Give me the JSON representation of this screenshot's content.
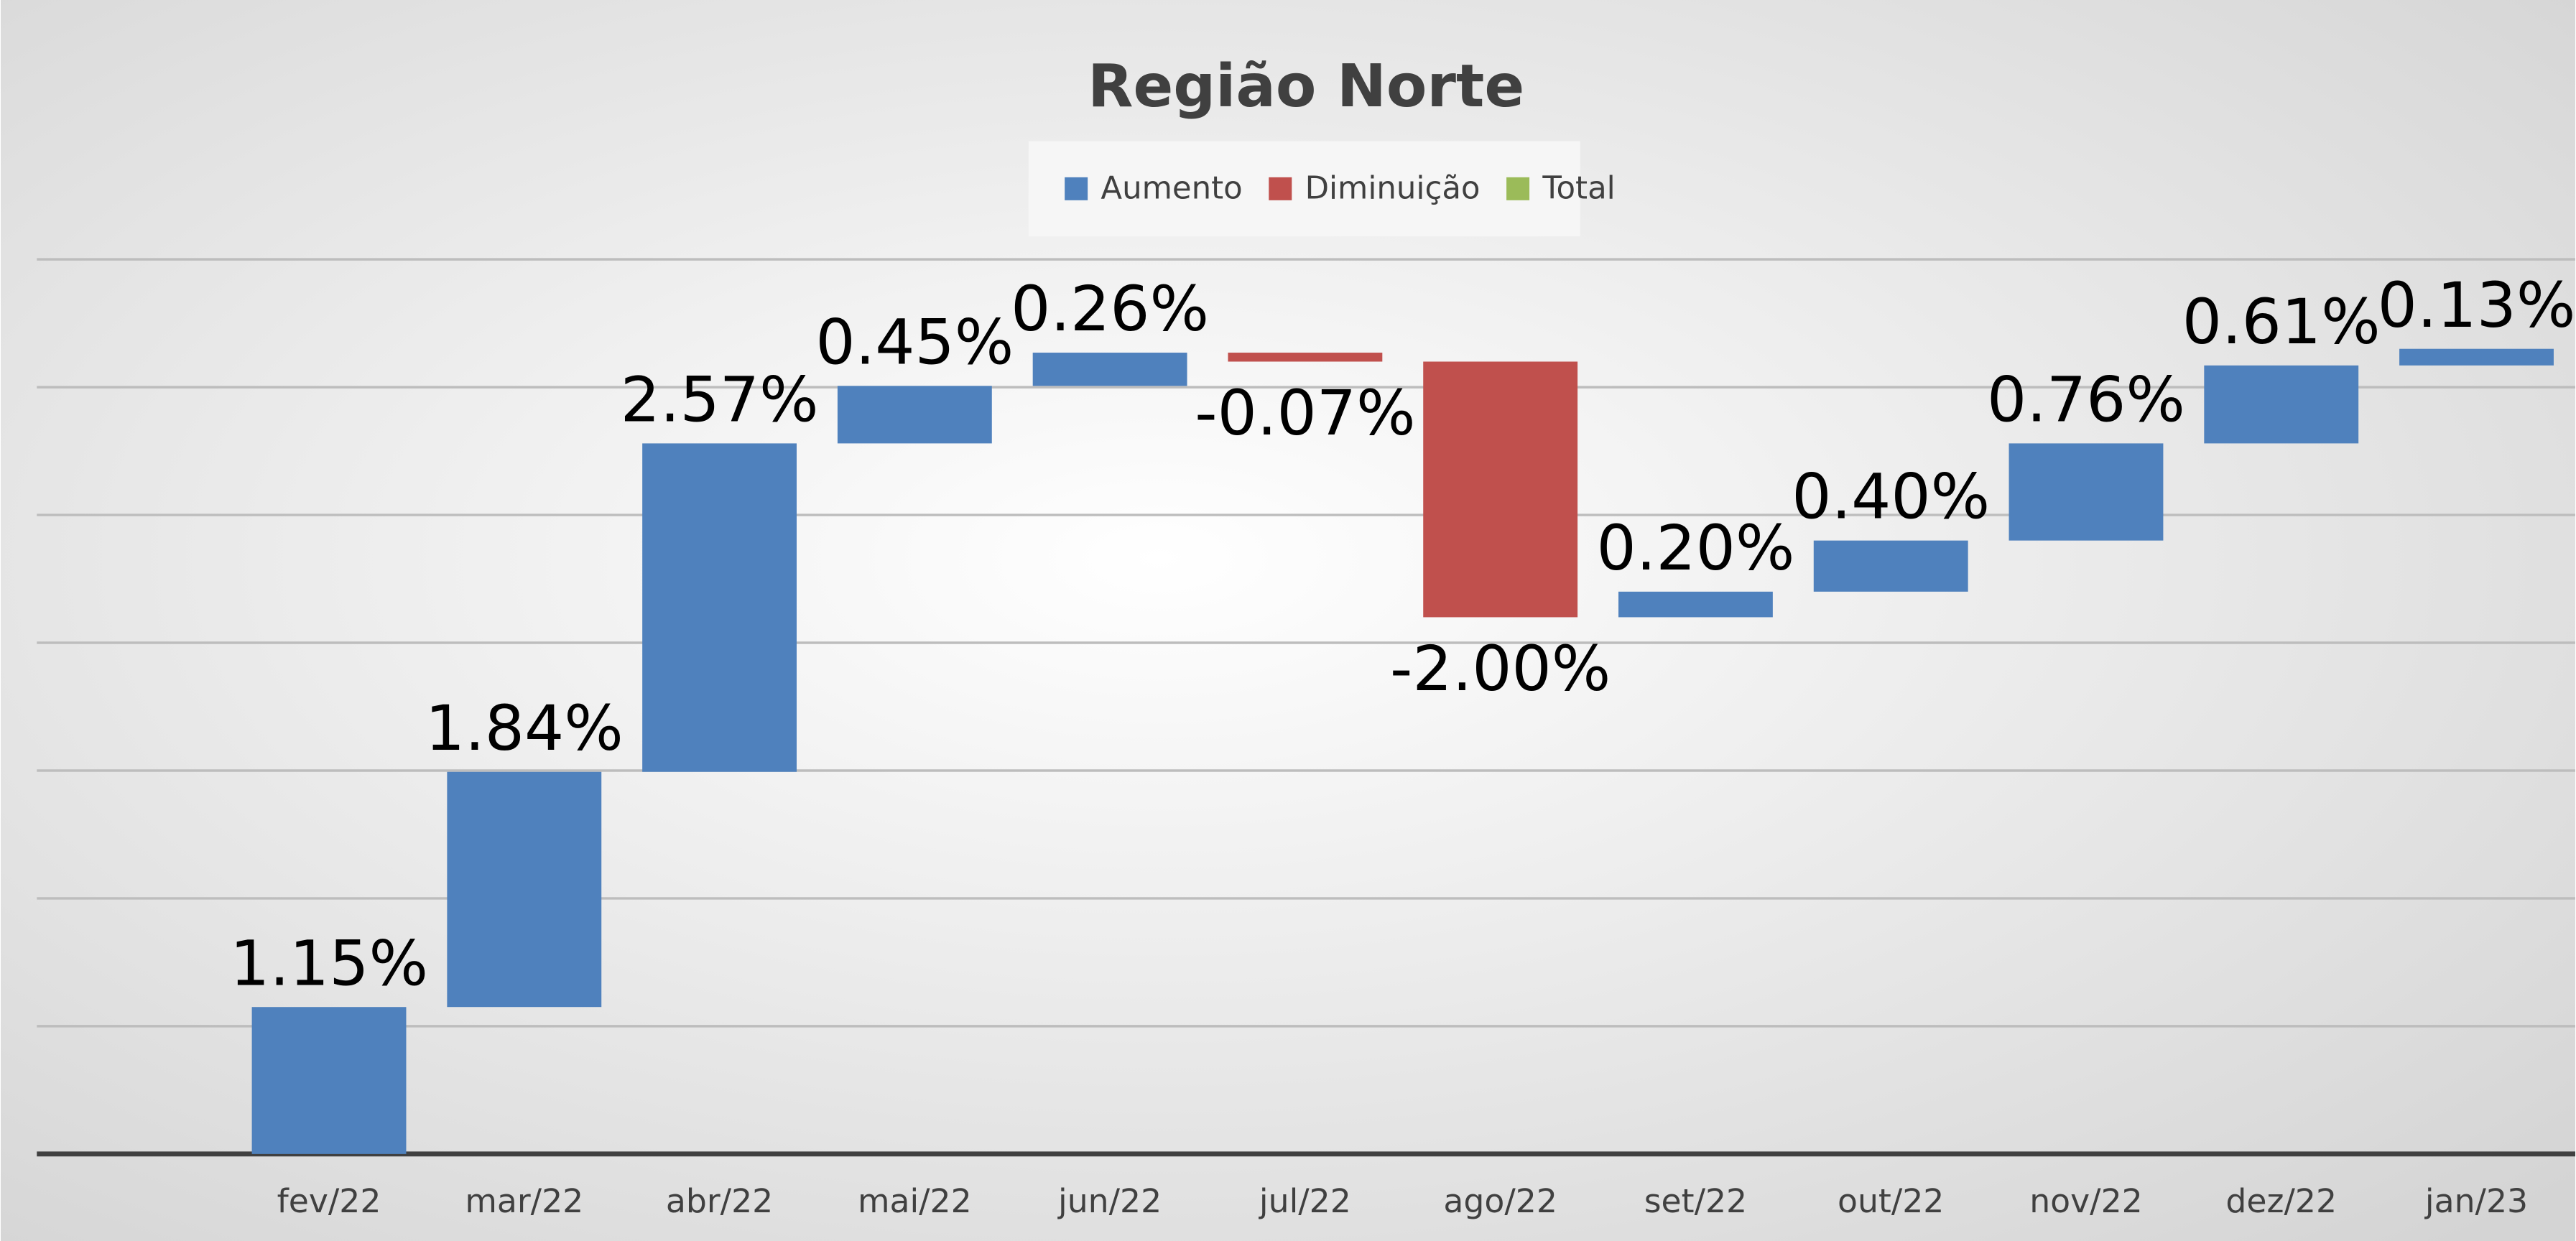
{
  "chart_data": {
    "type": "waterfall",
    "title": "Região Norte",
    "categories": [
      "fev/22",
      "mar/22",
      "abr/22",
      "mai/22",
      "jun/22",
      "jul/22",
      "ago/22",
      "set/22",
      "out/22",
      "nov/22",
      "dez/22",
      "jan/23"
    ],
    "values": [
      1.15,
      1.84,
      2.57,
      0.45,
      0.26,
      -0.07,
      -2.0,
      0.2,
      0.4,
      0.76,
      0.61,
      0.13
    ],
    "value_labels": [
      "1.15%",
      "1.84%",
      "2.57%",
      "0.45%",
      "0.26%",
      "-0.07%",
      "-2.00%",
      "0.20%",
      "0.40%",
      "0.76%",
      "0.61%",
      "0.13%"
    ],
    "legend": [
      {
        "name": "Aumento",
        "color": "#4f81bd"
      },
      {
        "name": "Diminuição",
        "color": "#c0504d"
      },
      {
        "name": "Total",
        "color": "#9bbb59"
      }
    ],
    "ylim": [
      0,
      7
    ],
    "yticks": [
      0,
      1,
      2,
      3,
      4,
      5,
      6,
      7
    ],
    "grid": true
  }
}
